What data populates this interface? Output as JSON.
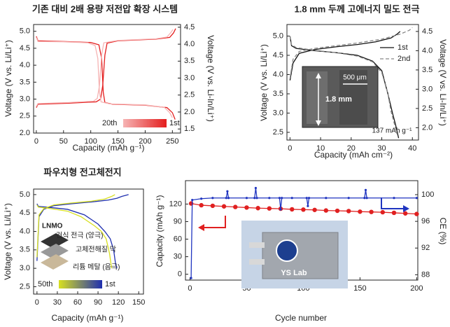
{
  "chart_data": [
    {
      "type": "line",
      "title": "기존 대비 2배 용량 저전압 확장 시스템",
      "xlabel": "Capacity (mAh g⁻¹)",
      "ylabel": "Voltage (V vs. Li/Li⁺)",
      "y2label": "Voltage (V vs. Li-In/Li⁺)",
      "xlim": [
        -5,
        265
      ],
      "xticks": [
        0,
        50,
        100,
        150,
        200,
        250
      ],
      "ylim": [
        2.0,
        5.2
      ],
      "yticks": [
        {
          "value": 2,
          "label": "2.0"
        },
        2.5,
        {
          "value": 3,
          "label": "3.0"
        },
        3.5,
        {
          "value": 4,
          "label": "4.0"
        },
        4.5,
        {
          "value": 5,
          "label": "5.0"
        }
      ],
      "y2lim": [
        1.38,
        4.58
      ],
      "y2ticks": [
        1.5,
        {
          "value": 2,
          "label": "2.0"
        },
        2.5,
        {
          "value": 3,
          "label": "3.0"
        },
        3.5,
        {
          "value": 4,
          "label": "4.0"
        },
        4.5
      ],
      "legend": "lower right",
      "legend_style": "gradient",
      "series": [
        {
          "name": "1st",
          "color": "#e41e1e",
          "x": [
            0,
            3,
            60,
            110,
            118,
            122,
            126,
            130,
            150,
            220,
            245,
            252,
            256,
            null,
            0,
            3,
            50,
            100,
            115,
            120,
            123,
            126,
            140,
            200,
            240,
            250,
            255
          ],
          "values": [
            2.75,
            2.85,
            2.88,
            2.92,
            3.0,
            3.4,
            4.3,
            4.65,
            4.72,
            4.77,
            4.82,
            4.95,
            5.08,
            null,
            4.85,
            4.72,
            4.7,
            4.67,
            4.6,
            4.2,
            3.2,
            2.9,
            2.85,
            2.82,
            2.75,
            2.6,
            2.4
          ]
        },
        {
          "name": "20th",
          "color": "#f6b4b4",
          "x": [
            0,
            3,
            60,
            105,
            112,
            116,
            120,
            124,
            150,
            220,
            240,
            247,
            251,
            null,
            0,
            3,
            50,
            95,
            108,
            113,
            116,
            119,
            135,
            200,
            235,
            245,
            250
          ],
          "values": [
            2.78,
            2.87,
            2.9,
            2.94,
            3.02,
            3.4,
            4.3,
            4.66,
            4.73,
            4.78,
            4.83,
            4.96,
            5.05,
            null,
            4.82,
            4.7,
            4.69,
            4.66,
            4.58,
            4.2,
            3.2,
            2.92,
            2.86,
            2.83,
            2.76,
            2.6,
            2.45
          ]
        }
      ]
    },
    {
      "type": "line",
      "title": "1.8 mm 두께 고에너지 밀도 전극",
      "xlabel": "Capacity (mAh cm⁻²)",
      "ylabel": "Voltage (V vs. Li/Li⁺)",
      "y2label": "Voltage (V vs. Li-In/Li⁺)",
      "xlim": [
        -1,
        42
      ],
      "xticks": [
        0,
        10,
        20,
        30,
        40
      ],
      "ylim": [
        2.3,
        5.3
      ],
      "yticks": [
        2.5,
        {
          "value": 3,
          "label": "3.0"
        },
        3.5,
        {
          "value": 4,
          "label": "4.0"
        },
        4.5,
        {
          "value": 5,
          "label": "5.0"
        }
      ],
      "y2lim": [
        1.68,
        4.68
      ],
      "y2ticks": [
        {
          "value": 2,
          "label": "2.0"
        },
        2.5,
        {
          "value": 3,
          "label": "3.0"
        },
        3.5,
        {
          "value": 4,
          "label": "4.0"
        },
        4.5
      ],
      "legend": "upper right",
      "legend_style": "line",
      "annotations": [
        "137 mAh g⁻¹",
        "500 μm",
        "1.8 mm"
      ],
      "series": [
        {
          "name": "1st",
          "color": "#111111",
          "dashed": false,
          "x": [
            0,
            1,
            3,
            8,
            15,
            22,
            28,
            33,
            35,
            36,
            null,
            0,
            0.5,
            2,
            8,
            15,
            22,
            27,
            30,
            32,
            33.5,
            34.5,
            35.5
          ],
          "values": [
            3.85,
            4.3,
            4.55,
            4.65,
            4.72,
            4.78,
            4.85,
            4.95,
            5.05,
            5.12,
            null,
            5.0,
            4.75,
            4.68,
            4.62,
            4.57,
            4.5,
            4.35,
            4.1,
            3.5,
            3.0,
            2.7,
            2.35
          ]
        },
        {
          "name": "2nd",
          "color": "#888888",
          "dashed": true,
          "x": [
            0,
            1,
            3,
            8,
            15,
            22,
            30,
            36,
            39,
            40,
            null,
            0,
            0.5,
            2,
            8,
            15,
            22,
            27,
            30,
            32,
            33,
            34,
            35
          ],
          "values": [
            3.9,
            4.4,
            4.6,
            4.68,
            4.75,
            4.82,
            4.92,
            5.05,
            5.15,
            5.22,
            null,
            5.0,
            4.78,
            4.7,
            4.63,
            4.57,
            4.48,
            4.33,
            4.05,
            3.5,
            3.05,
            2.75,
            2.45
          ]
        }
      ]
    },
    {
      "type": "line",
      "title": "파우치형 전고체전지",
      "xlabel": "Capacity (mAh g⁻¹)",
      "ylabel": "Voltage (V vs. Li/Li⁺)",
      "xlim": [
        -5,
        157
      ],
      "xticks": [
        0,
        30,
        60,
        90,
        120,
        150
      ],
      "ylim": [
        2.3,
        5.15
      ],
      "yticks": [
        2.5,
        {
          "value": 3,
          "label": "3.0"
        },
        3.5,
        {
          "value": 4,
          "label": "4.0"
        },
        4.5,
        {
          "value": 5,
          "label": "5.0"
        }
      ],
      "legend": "lower left",
      "legend_style": "gradient",
      "annotations": [
        "LNMO",
        "건식 전극 (양극)",
        "고체전해질 막",
        "리튬 메탈 (음극)"
      ],
      "series": [
        {
          "name": "1st",
          "color": "#1f2fb0",
          "x": [
            0,
            3,
            10,
            25,
            50,
            80,
            105,
            118,
            125,
            135,
            null,
            0,
            2,
            20,
            45,
            70,
            90,
            100,
            108,
            113,
            116,
            118
          ],
          "values": [
            3.2,
            4.4,
            4.6,
            4.7,
            4.75,
            4.8,
            4.85,
            4.9,
            4.95,
            5.0,
            null,
            4.75,
            4.68,
            4.65,
            4.6,
            4.45,
            4.2,
            4.0,
            3.8,
            3.5,
            3.1,
            3.0
          ]
        },
        {
          "name": "50th",
          "color": "#d8e020",
          "x": [
            0,
            3,
            10,
            25,
            50,
            80,
            100,
            110,
            115,
            null,
            0,
            2,
            20,
            45,
            65,
            85,
            95,
            102,
            107,
            110
          ],
          "values": [
            3.3,
            4.45,
            4.62,
            4.72,
            4.77,
            4.82,
            4.88,
            4.95,
            5.0,
            null,
            4.72,
            4.66,
            4.62,
            4.55,
            4.4,
            4.15,
            4.0,
            3.8,
            3.4,
            3.0
          ]
        }
      ]
    },
    {
      "type": "line",
      "xlabel": "Cycle number",
      "ylabel": "Capacity (mAh g⁻¹)",
      "y2label": "CE (%)",
      "xlim": [
        -4,
        201
      ],
      "xticks": [
        0,
        50,
        100,
        150,
        200
      ],
      "ylim": [
        -10,
        160
      ],
      "yticks": [
        0,
        30,
        60,
        90,
        120
      ],
      "y2lim": [
        87.2,
        102.1
      ],
      "y2ticks": [
        88,
        92,
        96,
        100
      ],
      "annotations": [
        "YS Lab"
      ],
      "series": [
        {
          "color": "#e02020",
          "markers": true,
          "x": [
            1,
            10,
            20,
            30,
            40,
            50,
            60,
            70,
            80,
            90,
            100,
            110,
            120,
            130,
            140,
            150,
            160,
            170,
            180,
            190,
            200
          ],
          "values": [
            121,
            118,
            117,
            116,
            115,
            114,
            113,
            112.5,
            112,
            111,
            110.5,
            110,
            109,
            108.5,
            108,
            107,
            106.5,
            106,
            105,
            104,
            103
          ]
        },
        {
          "color": "#2035c0",
          "axis": "y2",
          "markers": true,
          "x": [
            1,
            2,
            10,
            20,
            32,
            33,
            34,
            50,
            57,
            58,
            59,
            70,
            79,
            80,
            81,
            90,
            103,
            104,
            105,
            120,
            140,
            154,
            155,
            156,
            180,
            200
          ],
          "values": [
            87.5,
            99.2,
            99.4,
            99.5,
            99.5,
            100.5,
            99.5,
            99.5,
            99.5,
            101,
            99.5,
            99.5,
            99.5,
            97.8,
            99.5,
            99.5,
            99.5,
            98.3,
            99.5,
            99.5,
            99.5,
            99.5,
            100.7,
            99.5,
            99.5,
            99.5
          ]
        }
      ]
    }
  ]
}
